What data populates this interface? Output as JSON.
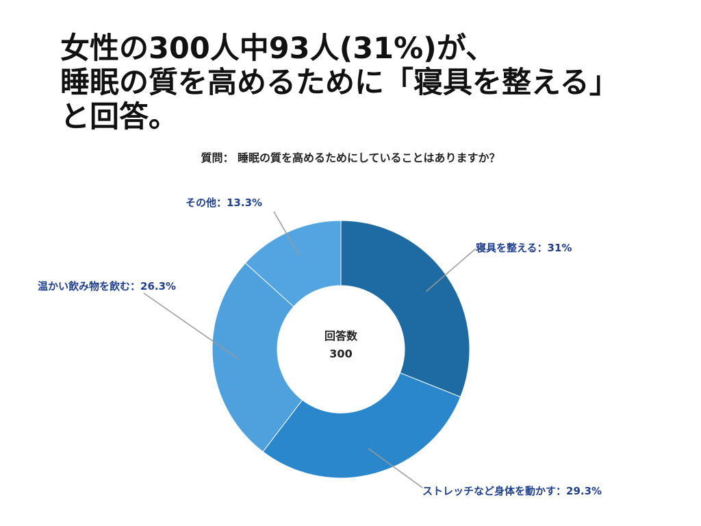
{
  "headline": {
    "line1": "女性の300人中93人(31%)が、",
    "line2": "睡眠の質を高めるために「寝具を整える」",
    "line3": "と回答。"
  },
  "chart_data": {
    "type": "pie",
    "subtitle": "質問： 睡眠の質を高めるためにしていることはありますか？",
    "center_label": "回答数",
    "center_value": "300",
    "slices": [
      {
        "label": "寝具を整える：31%",
        "value": 31.0,
        "color": "#1e6aa3"
      },
      {
        "label": "ストレッチなど身体を動かす：29.3%",
        "value": 29.3,
        "color": "#2a87cc"
      },
      {
        "label": "温かい飲み物を飲む：26.3%",
        "value": 26.3,
        "color": "#4fa1dd"
      },
      {
        "label": "その他：13.3%",
        "value": 13.3,
        "color": "#53a5e2"
      }
    ]
  }
}
